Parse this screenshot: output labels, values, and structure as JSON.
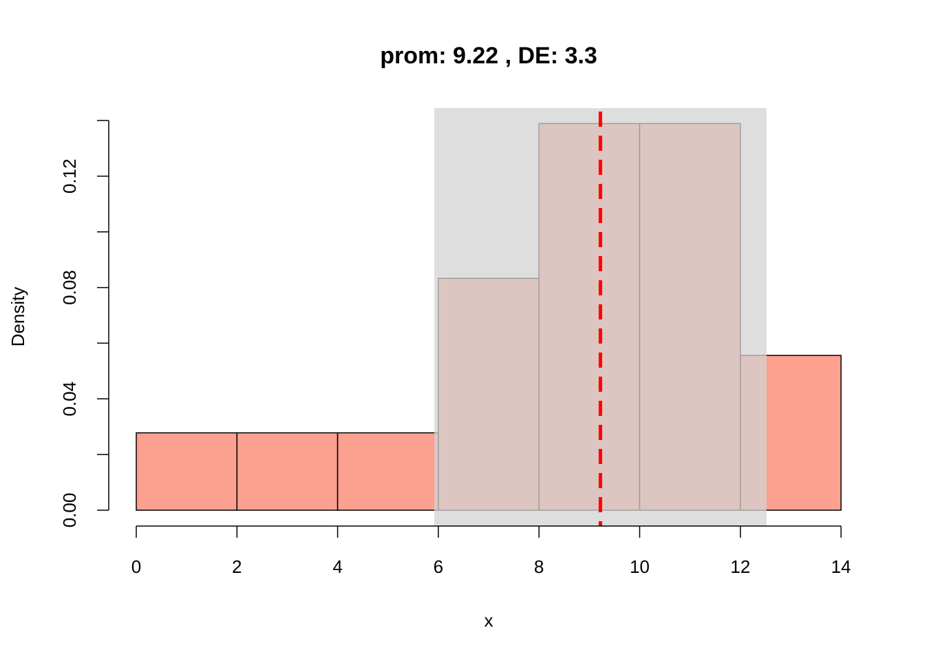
{
  "chart_data": {
    "type": "bar",
    "title": "prom: 9.22 , DE: 3.3",
    "xlabel": "x",
    "ylabel": "Density",
    "bins": [
      {
        "x0": 0,
        "x1": 2,
        "density": 0.0278
      },
      {
        "x0": 2,
        "x1": 4,
        "density": 0.0278
      },
      {
        "x0": 4,
        "x1": 6,
        "density": 0.0278
      },
      {
        "x0": 6,
        "x1": 8,
        "density": 0.0833
      },
      {
        "x0": 8,
        "x1": 10,
        "density": 0.1389
      },
      {
        "x0": 10,
        "x1": 12,
        "density": 0.1389
      },
      {
        "x0": 12,
        "x1": 14,
        "density": 0.0556
      }
    ],
    "xlim": [
      0,
      14
    ],
    "ylim": [
      0,
      0.14
    ],
    "xticks": [
      0,
      2,
      4,
      6,
      8,
      10,
      12,
      14
    ],
    "xtick_labels": [
      "0",
      "2",
      "4",
      "6",
      "8",
      "10",
      "12",
      "14"
    ],
    "yticks": [
      0.0,
      0.02,
      0.04,
      0.06,
      0.08,
      0.1,
      0.12,
      0.14
    ],
    "ytick_labels": [
      "0.00",
      "",
      "0.04",
      "",
      "0.08",
      "",
      "0.12",
      ""
    ],
    "mean": 9.22,
    "sd": 3.3,
    "sd_band": [
      5.92,
      12.52
    ],
    "bar_color": "#FCA08F",
    "band_color": "#D3D3D3",
    "mean_line_color": "#FF0000",
    "grid": false
  }
}
